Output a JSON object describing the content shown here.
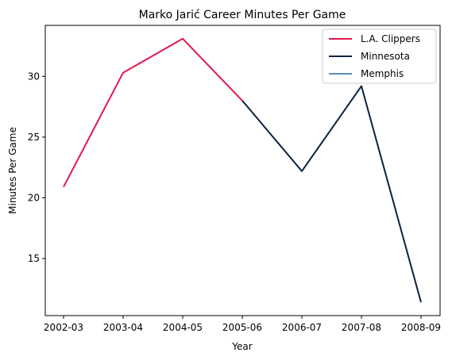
{
  "chart_data": {
    "type": "line",
    "title": "Marko Jarić Career Minutes Per Game",
    "xlabel": "Year",
    "ylabel": "Minutes Per Game",
    "categories": [
      "2002-03",
      "2003-04",
      "2004-05",
      "2005-06",
      "2006-07",
      "2007-08",
      "2008-09"
    ],
    "yticks": [
      15,
      20,
      25,
      30
    ],
    "ylim": [
      10.3,
      34.2
    ],
    "grid": false,
    "legend_position": "top-right",
    "series": [
      {
        "name": "L.A. Clippers",
        "color": "#e3174d",
        "x": [
          "2002-03",
          "2003-04",
          "2004-05",
          "2005-06"
        ],
        "values": [
          20.9,
          30.3,
          33.1,
          28.0
        ]
      },
      {
        "name": "Minnesota",
        "color": "#0c2340",
        "x": [
          "2005-06",
          "2006-07",
          "2007-08",
          "2008-09"
        ],
        "values": [
          28.0,
          22.2,
          29.2,
          11.4
        ]
      },
      {
        "name": "Memphis",
        "color": "#5d8bbb",
        "x": [],
        "values": []
      }
    ]
  }
}
